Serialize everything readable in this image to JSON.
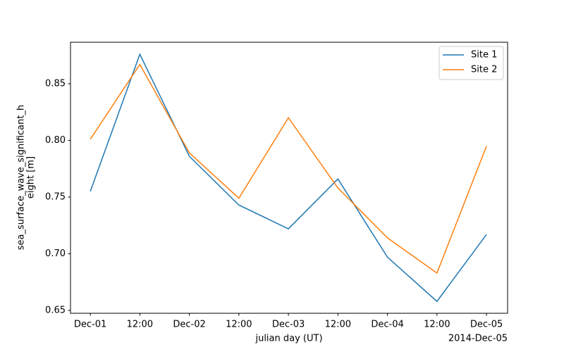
{
  "chart_data": {
    "type": "line",
    "xlabel": "julian day (UT)",
    "ylabel": [
      "sea_surface_wave_significant_h",
      "eight [m]"
    ],
    "x_offset_label": "2014-Dec-05",
    "x": [
      "2014-12-01T00:00Z",
      "2014-12-01T12:00Z",
      "2014-12-02T00:00Z",
      "2014-12-02T12:00Z",
      "2014-12-03T00:00Z",
      "2014-12-03T12:00Z",
      "2014-12-04T00:00Z",
      "2014-12-04T12:00Z",
      "2014-12-05T00:00Z"
    ],
    "series": [
      {
        "name": "Site 1",
        "color": "#1f77b4",
        "values": [
          0.755,
          0.876,
          0.786,
          0.743,
          0.722,
          0.766,
          0.697,
          0.658,
          0.717
        ]
      },
      {
        "name": "Site 2",
        "color": "#ff7f0e",
        "values": [
          0.801,
          0.867,
          0.789,
          0.749,
          0.82,
          0.758,
          0.714,
          0.683,
          0.795
        ]
      }
    ],
    "xlim": [
      "2014-11-30T19:12Z",
      "2014-12-05T05:07Z"
    ],
    "xticks": [
      {
        "value": "2014-12-01T00:00Z",
        "label": "Dec-01"
      },
      {
        "value": "2014-12-01T12:00Z",
        "label": "12:00"
      },
      {
        "value": "2014-12-02T00:00Z",
        "label": "Dec-02"
      },
      {
        "value": "2014-12-02T12:00Z",
        "label": "12:00"
      },
      {
        "value": "2014-12-03T00:00Z",
        "label": "Dec-03"
      },
      {
        "value": "2014-12-03T12:00Z",
        "label": "12:00"
      },
      {
        "value": "2014-12-04T00:00Z",
        "label": "Dec-04"
      },
      {
        "value": "2014-12-04T12:00Z",
        "label": "12:00"
      },
      {
        "value": "2014-12-05T00:00Z",
        "label": "Dec-05"
      }
    ],
    "ylim": [
      0.6475,
      0.8866
    ],
    "yticks": [
      0.65,
      {
        "value": 0.7,
        "label": "0.70"
      },
      0.75,
      {
        "value": 0.8,
        "label": "0.80"
      },
      0.85
    ],
    "legend": "upper right",
    "grid": false
  }
}
